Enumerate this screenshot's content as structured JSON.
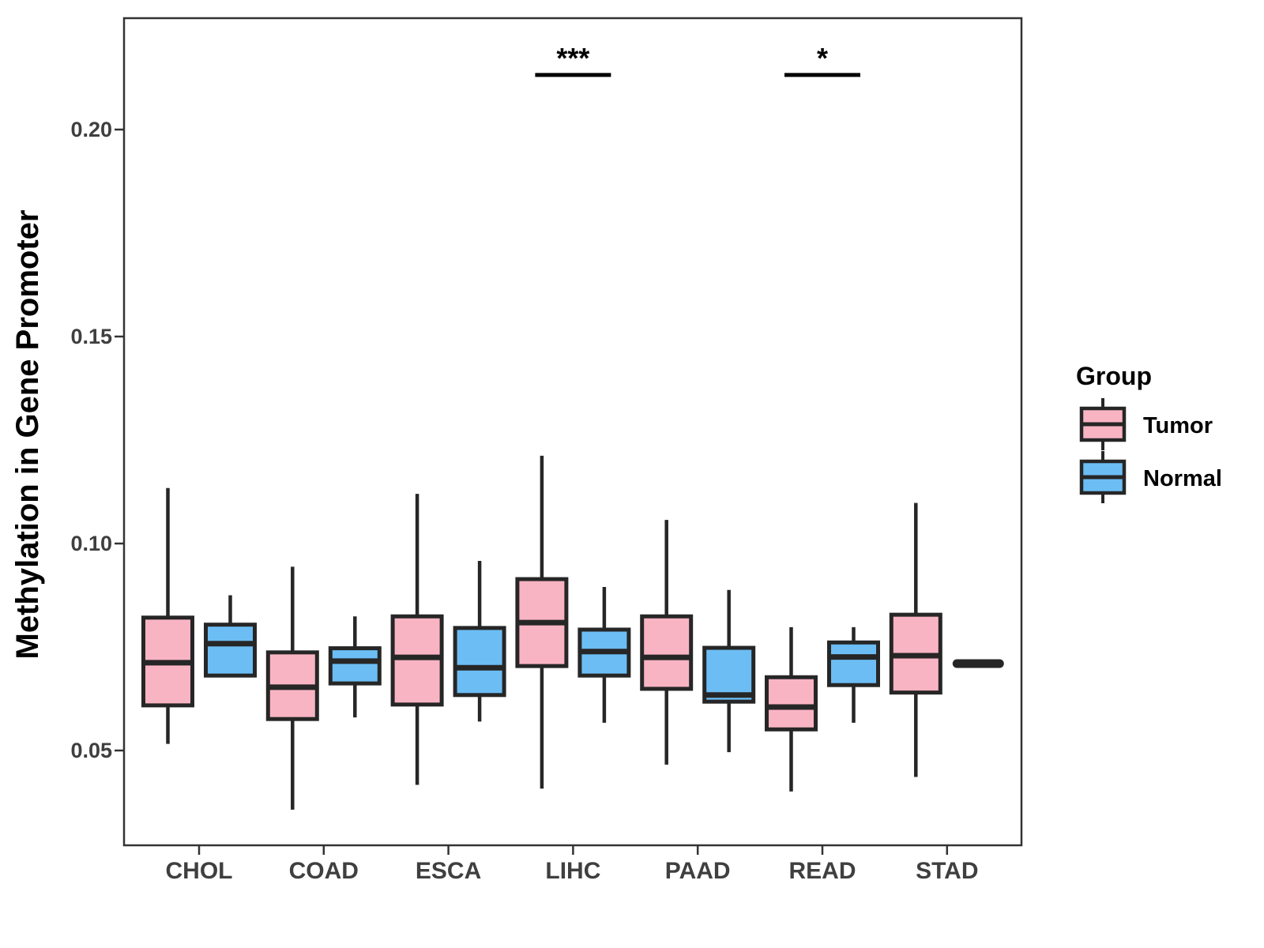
{
  "chart_data": {
    "type": "boxplot",
    "title": "",
    "xlabel": "",
    "ylabel": "Methylation in Gene Promoter",
    "y_ticks": [
      0.05,
      0.1,
      0.15,
      0.2
    ],
    "y_tick_labels": [
      "0.05",
      "0.10",
      "0.15",
      "0.20"
    ],
    "ylim": [
      0.027,
      0.227
    ],
    "grid": false,
    "categories": [
      "CHOL",
      "COAD",
      "ESCA",
      "LIHC",
      "PAAD",
      "READ",
      "STAD"
    ],
    "legend": {
      "title": "Group",
      "position": "right",
      "entries": [
        {
          "label": "Tumor",
          "color": "#F9B4C4"
        },
        {
          "label": "Normal",
          "color": "#6CBDF4"
        }
      ]
    },
    "colors": {
      "box_outline": "#262626",
      "panel_border": "#333333",
      "axis_text": "#3F3F3F",
      "annotation": "#000000"
    },
    "series": [
      {
        "name": "Tumor",
        "color": "#F9B4C4",
        "boxes": [
          {
            "category": "CHOL",
            "whisker_low": 0.0516,
            "q1": 0.0609,
            "median": 0.0712,
            "q3": 0.0821,
            "whisker_high": 0.1134
          },
          {
            "category": "COAD",
            "whisker_low": 0.0357,
            "q1": 0.0576,
            "median": 0.0653,
            "q3": 0.0737,
            "whisker_high": 0.0944
          },
          {
            "category": "ESCA",
            "whisker_low": 0.0417,
            "q1": 0.0611,
            "median": 0.0725,
            "q3": 0.0824,
            "whisker_high": 0.112
          },
          {
            "category": "LIHC",
            "whisker_low": 0.0408,
            "q1": 0.0704,
            "median": 0.0809,
            "q3": 0.0914,
            "whisker_high": 0.1212
          },
          {
            "category": "PAAD",
            "whisker_low": 0.0466,
            "q1": 0.0649,
            "median": 0.0725,
            "q3": 0.0824,
            "whisker_high": 0.1057
          },
          {
            "category": "READ",
            "whisker_low": 0.0401,
            "q1": 0.0551,
            "median": 0.0605,
            "q3": 0.0677,
            "whisker_high": 0.0798
          },
          {
            "category": "STAD",
            "whisker_low": 0.0436,
            "q1": 0.064,
            "median": 0.0729,
            "q3": 0.0828,
            "whisker_high": 0.1098
          }
        ]
      },
      {
        "name": "Normal",
        "color": "#6CBDF4",
        "boxes": [
          {
            "category": "CHOL",
            "whisker_low": 0.0681,
            "q1": 0.0681,
            "median": 0.0758,
            "q3": 0.0804,
            "whisker_high": 0.0875
          },
          {
            "category": "COAD",
            "whisker_low": 0.058,
            "q1": 0.0662,
            "median": 0.0716,
            "q3": 0.0747,
            "whisker_high": 0.0824
          },
          {
            "category": "ESCA",
            "whisker_low": 0.057,
            "q1": 0.0634,
            "median": 0.07,
            "q3": 0.0796,
            "whisker_high": 0.0958
          },
          {
            "category": "LIHC",
            "whisker_low": 0.0567,
            "q1": 0.0681,
            "median": 0.0739,
            "q3": 0.0792,
            "whisker_high": 0.0895
          },
          {
            "category": "PAAD",
            "whisker_low": 0.0496,
            "q1": 0.0618,
            "median": 0.0634,
            "q3": 0.0748,
            "whisker_high": 0.0888
          },
          {
            "category": "READ",
            "whisker_low": 0.0567,
            "q1": 0.0658,
            "median": 0.0726,
            "q3": 0.0761,
            "whisker_high": 0.0798
          },
          {
            "category": "STAD",
            "single_value": 0.071
          }
        ]
      }
    ],
    "annotations": [
      {
        "text": "***",
        "category": "LIHC",
        "bar_y": 0.2132
      },
      {
        "text": "*",
        "category": "READ",
        "bar_y": 0.2132
      }
    ]
  }
}
